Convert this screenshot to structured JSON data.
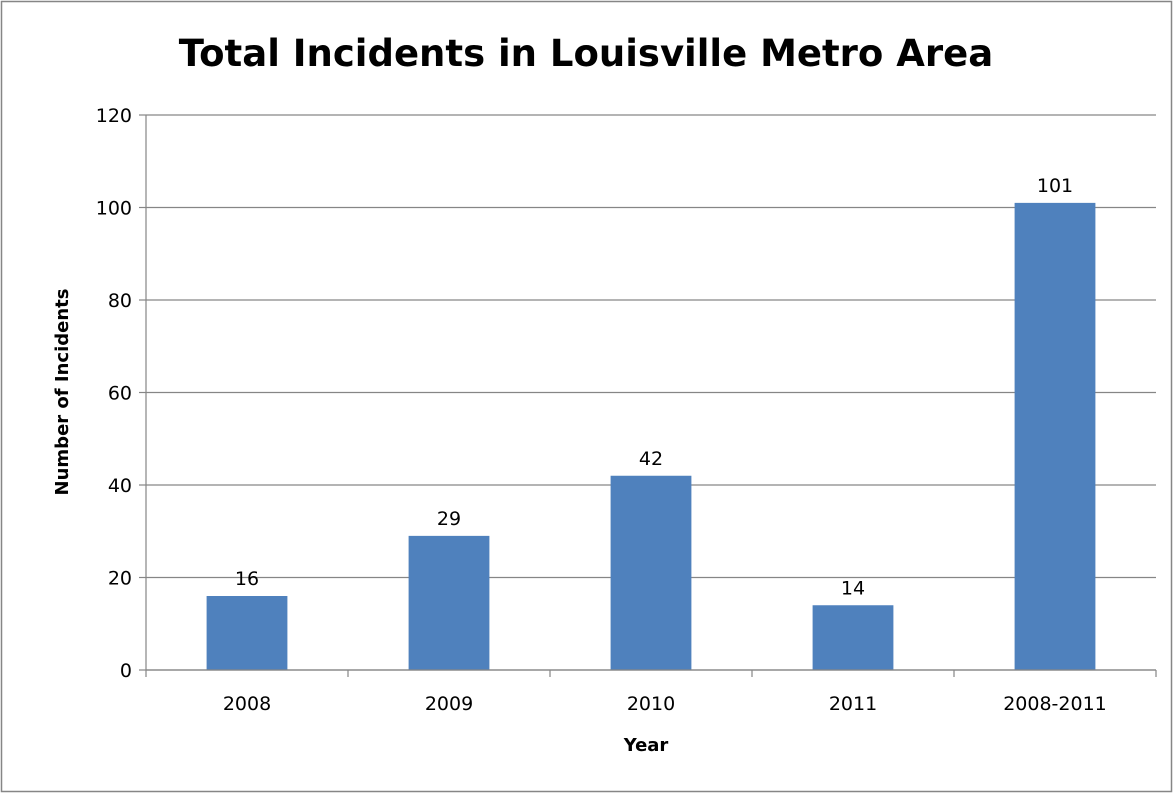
{
  "chart_data": {
    "type": "bar",
    "title": "Total Incidents in Louisville Metro Area",
    "xlabel": "Year",
    "ylabel": "Number of Incidents",
    "categories": [
      "2008",
      "2009",
      "2010",
      "2011",
      "2008-2011"
    ],
    "values": [
      16,
      29,
      42,
      14,
      101
    ],
    "ylim": [
      0,
      120
    ],
    "yticks": [
      0,
      20,
      40,
      60,
      80,
      100,
      120
    ],
    "grid": true,
    "data_labels": true,
    "colors": {
      "bar": "#4F81BD",
      "grid": "#868686",
      "axis": "#868686",
      "border": "#868686"
    }
  }
}
